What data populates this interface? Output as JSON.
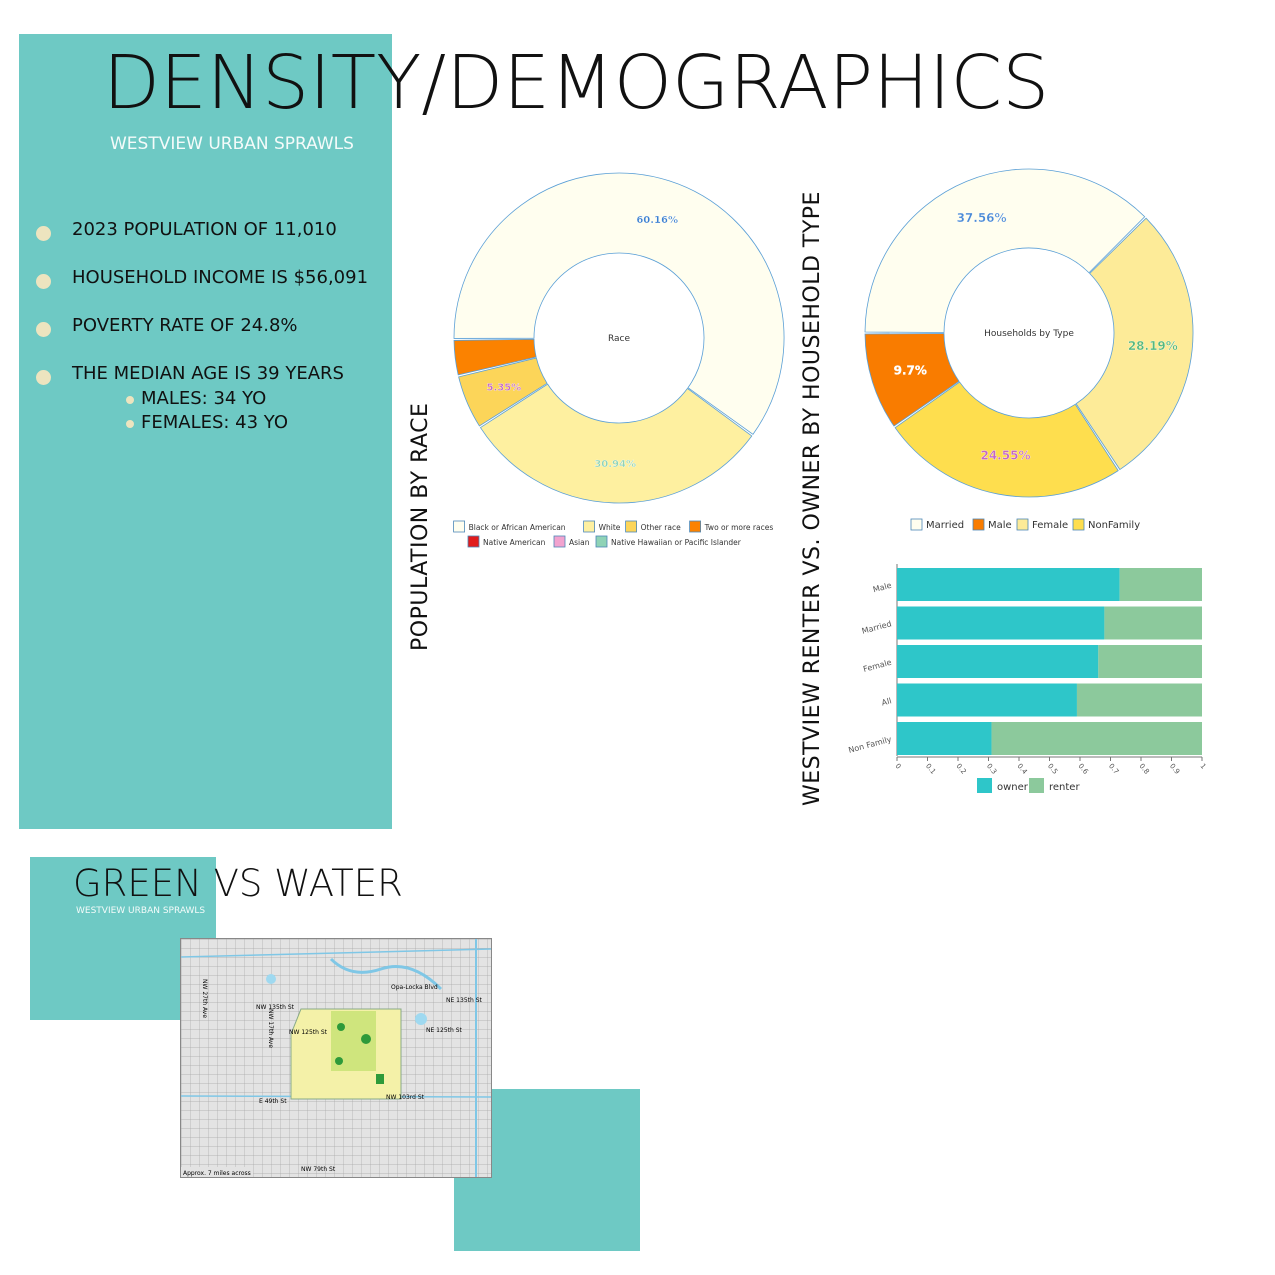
{
  "header": {
    "title": "DENSITY/DEMOGRAPHICS",
    "subtitle": "WESTVIEW URBAN SPRAWLS"
  },
  "stats": {
    "items": [
      "2023 POPULATION OF 11,010",
      "HOUSEHOLD INCOME IS $56,091",
      "POVERTY RATE OF 24.8%",
      "THE MEDIAN AGE IS 39 YEARS"
    ],
    "sub_items": [
      "MALES: 34 YO",
      "FEMALES: 43 YO"
    ],
    "bullet_color": "#ede4bf"
  },
  "colors": {
    "accent_teal": "#6ec9c4"
  },
  "labels": {
    "race_vertical": "POPULATION BY RACE",
    "household_vertical": "WESTVIEW RENTER  VS. OWNER BY HOUSEHOLD TYPE"
  },
  "chart_data": [
    {
      "type": "pie",
      "title": "Race",
      "series": [
        {
          "name": "Black or African American",
          "value": 60.16,
          "label": "60.16%",
          "color": "#fffeef"
        },
        {
          "name": "White",
          "value": 30.94,
          "label": "30.94%",
          "color": "#fef0a0"
        },
        {
          "name": "Other race",
          "value": 5.35,
          "label": "5.35%",
          "color": "#fcd559"
        },
        {
          "name": "Two or more races",
          "value": 3.55,
          "label": "",
          "color": "#fb8200"
        },
        {
          "name": "Native American",
          "value": 0,
          "label": "",
          "color": "#e11c1c"
        },
        {
          "name": "Asian",
          "value": 0,
          "label": "",
          "color": "#f2a3cf"
        },
        {
          "name": "Native Hawaiian or Pacific Islander",
          "value": 0,
          "label": "",
          "color": "#8fd3b6"
        }
      ]
    },
    {
      "type": "pie",
      "title": "Households by Type",
      "series": [
        {
          "name": "Married",
          "value": 37.56,
          "label": "37.56%",
          "color": "#fffeef"
        },
        {
          "name": "Female",
          "value": 28.19,
          "label": "28.19%",
          "color": "#fdeb98"
        },
        {
          "name": "NonFamily",
          "value": 24.55,
          "label": "24.55%",
          "color": "#fede4e"
        },
        {
          "name": "Male",
          "value": 9.7,
          "label": "9.7%",
          "color": "#f97c00"
        }
      ],
      "legend_order": [
        "Married",
        "Male",
        "Female",
        "NonFamily"
      ]
    },
    {
      "type": "bar",
      "orientation": "horizontal",
      "stacked": true,
      "categories": [
        "Male",
        "Married",
        "Female",
        "All",
        "Non Family"
      ],
      "series": [
        {
          "name": "owner",
          "values": [
            0.73,
            0.68,
            0.66,
            0.59,
            0.31
          ],
          "color": "#2ec6c9"
        },
        {
          "name": "renter",
          "values": [
            0.27,
            0.32,
            0.34,
            0.41,
            0.69
          ],
          "color": "#8cc99c"
        }
      ],
      "xlim": [
        0,
        1
      ],
      "xticks": [
        "0",
        "0.1",
        "0.2",
        "0.3",
        "0.4",
        "0.5",
        "0.6",
        "0.7",
        "0.8",
        "0.9",
        "1"
      ]
    }
  ],
  "green_water": {
    "title": "GREEN VS WATER",
    "subtitle": "WESTVIEW URBAN SPRAWLS",
    "map_labels": [
      "NW 135th St",
      "NW 125th St",
      "NE 135th St",
      "NE 125th St",
      "NW 103rd St",
      "E 49th St",
      "NW 79th St",
      "NW 27th Ave",
      "NW 17th Ave",
      "Opa-Locka Blvd"
    ],
    "map_caption": "Approx. 7 miles across"
  }
}
